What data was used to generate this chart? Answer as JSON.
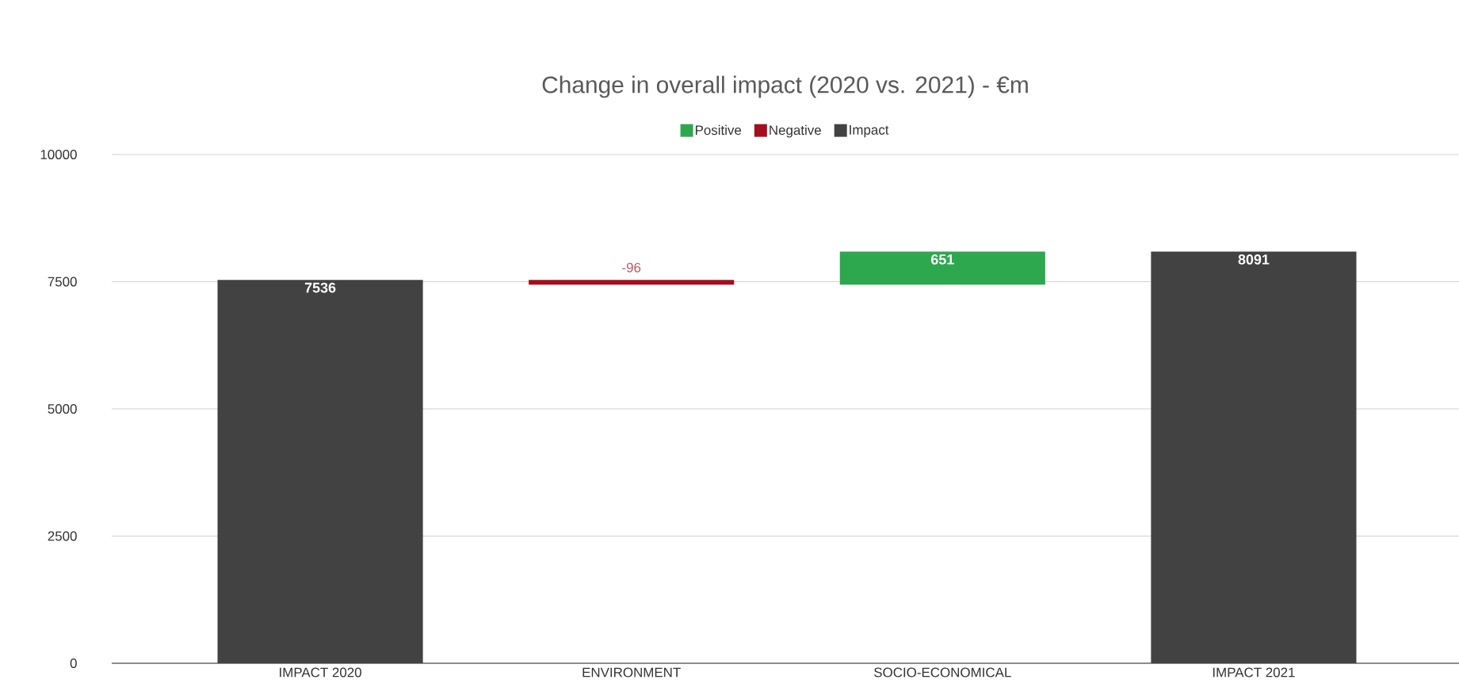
{
  "chart_data": {
    "type": "bar",
    "title": "Change in overall impact (2020 vs. 2021) - €m",
    "categories": [
      "IMPACT 2020",
      "ENVIRONMENT",
      "SOCIO-ECONOMICAL",
      "IMPACT 2021"
    ],
    "series": [
      {
        "name": "Positive",
        "color": "#2ea84e",
        "values": [
          null,
          null,
          651,
          null
        ],
        "base": [
          null,
          null,
          7440,
          null
        ],
        "value_labels": [
          null,
          null,
          "651",
          null
        ]
      },
      {
        "name": "Negative",
        "color": "#a50e1e",
        "values": [
          null,
          -96,
          null,
          null
        ],
        "base": [
          null,
          7536,
          null,
          null
        ],
        "value_labels": [
          null,
          "-96",
          null,
          null
        ]
      },
      {
        "name": "Impact",
        "color": "#424242",
        "values": [
          7536,
          null,
          null,
          8091
        ],
        "base": [
          0,
          null,
          null,
          0
        ],
        "value_labels": [
          "7536",
          null,
          null,
          "8091"
        ]
      }
    ],
    "ylim": [
      0,
      10000
    ],
    "yticks": [
      0,
      2500,
      5000,
      7500,
      10000
    ],
    "grid": "y",
    "legend": "top"
  }
}
